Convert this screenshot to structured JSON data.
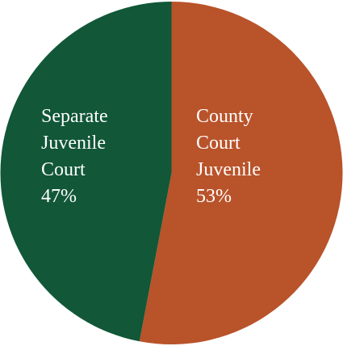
{
  "chart_data": {
    "type": "pie",
    "title": "",
    "legend": "none",
    "slices": [
      {
        "name": "County Court Juvenile",
        "label_lines": [
          "County",
          "Court",
          "Juvenile",
          "53%"
        ],
        "value": 53,
        "color": "#B9532A"
      },
      {
        "name": "Separate Juvenile Court",
        "label_lines": [
          "Separate",
          "Juvenile",
          "Court",
          "47%"
        ],
        "value": 47,
        "color": "#115738"
      }
    ]
  }
}
